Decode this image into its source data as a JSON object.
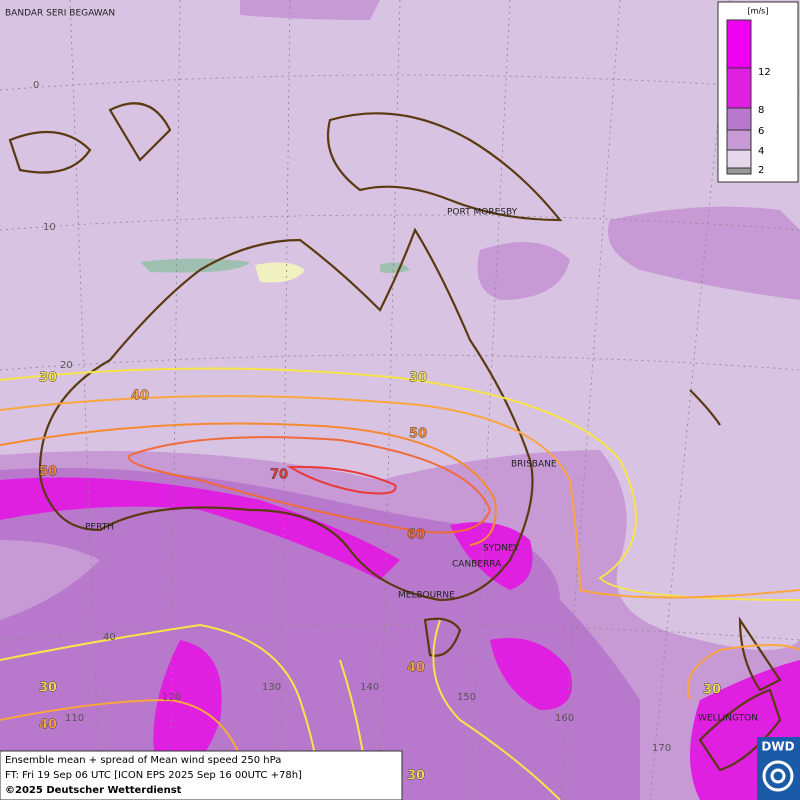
{
  "map": {
    "cities": [
      "BANDAR SERI BEGAWAN",
      "PORT MORESBY",
      "BRISBANE",
      "PERTH",
      "SYDNEY",
      "CANBERRA",
      "MELBOURNE",
      "WELLINGTON"
    ],
    "grid_labels": [
      "0",
      "10",
      "20",
      "40",
      "110",
      "120",
      "130",
      "140",
      "150",
      "160",
      "170"
    ],
    "contour_labels": [
      "30",
      "30",
      "40",
      "50",
      "50",
      "60",
      "70",
      "30",
      "40",
      "40",
      "30",
      "30"
    ]
  },
  "legend": {
    "unit": "[m/s]",
    "labels": [
      "12",
      "8",
      "6",
      "4",
      "2"
    ]
  },
  "footer": {
    "line1": "Ensemble mean + spread of Mean wind speed 250 hPa",
    "line2": "FT: Fri 19 Sep 06 UTC [ICON EPS 2025 Sep 16 00UTC +78h]",
    "copyright": "©2025 Deutscher Wetterdienst"
  },
  "logo": "DWD"
}
